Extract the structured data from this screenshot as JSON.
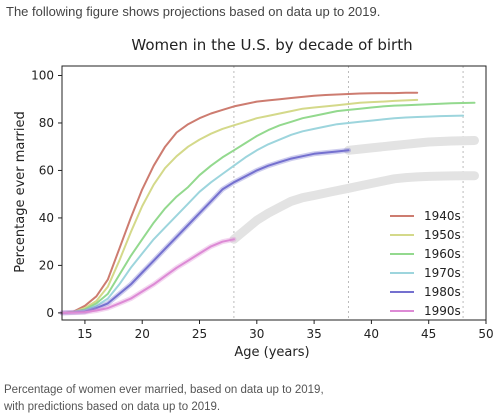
{
  "intro_text": "The following figure shows projections based on data up to 2019.",
  "caption": {
    "line1": "Percentage of women ever married, based on data up to 2019,",
    "line2": "with predictions based on data up to 2019."
  },
  "chart_data": {
    "type": "line",
    "title": "Women in the U.S. by decade of birth",
    "xlabel": "Age (years)",
    "ylabel": "Percentage ever married",
    "xlim": [
      13,
      50
    ],
    "ylim": [
      -3,
      104
    ],
    "xticks": [
      15,
      20,
      25,
      30,
      35,
      40,
      45,
      50
    ],
    "yticks": [
      0,
      20,
      40,
      60,
      80,
      100
    ],
    "grid": false,
    "legend_position": "right",
    "reference_lines_x": [
      28,
      38,
      48
    ],
    "prediction_color": "#e3e3e3",
    "series": [
      {
        "name": "1940s",
        "color": "#cd7c70",
        "observed": [
          [
            13,
            0
          ],
          [
            14,
            0.5
          ],
          [
            15,
            3
          ],
          [
            16,
            7
          ],
          [
            17,
            14
          ],
          [
            18,
            27
          ],
          [
            19,
            40
          ],
          [
            20,
            52
          ],
          [
            21,
            62
          ],
          [
            22,
            70
          ],
          [
            23,
            76
          ],
          [
            24,
            79.5
          ],
          [
            25,
            82
          ],
          [
            26,
            84
          ],
          [
            27,
            85.5
          ],
          [
            28,
            87
          ],
          [
            29,
            88
          ],
          [
            30,
            89
          ],
          [
            31,
            89.5
          ],
          [
            32,
            90
          ],
          [
            33,
            90.5
          ],
          [
            34,
            91
          ],
          [
            35,
            91.5
          ],
          [
            36,
            91.8
          ],
          [
            37,
            92
          ],
          [
            38,
            92.2
          ],
          [
            39,
            92.4
          ],
          [
            40,
            92.5
          ],
          [
            41,
            92.6
          ],
          [
            42,
            92.6
          ],
          [
            43,
            92.7
          ],
          [
            44,
            92.7
          ]
        ]
      },
      {
        "name": "1950s",
        "color": "#d4d98a",
        "observed": [
          [
            13,
            0
          ],
          [
            14,
            0.4
          ],
          [
            15,
            2
          ],
          [
            16,
            5
          ],
          [
            17,
            11
          ],
          [
            18,
            22
          ],
          [
            19,
            34
          ],
          [
            20,
            45
          ],
          [
            21,
            54
          ],
          [
            22,
            61
          ],
          [
            23,
            66
          ],
          [
            24,
            70
          ],
          [
            25,
            73
          ],
          [
            26,
            75.5
          ],
          [
            27,
            77.5
          ],
          [
            28,
            79
          ],
          [
            29,
            80.5
          ],
          [
            30,
            82
          ],
          [
            31,
            83
          ],
          [
            32,
            84
          ],
          [
            33,
            85
          ],
          [
            34,
            86
          ],
          [
            35,
            86.5
          ],
          [
            36,
            87
          ],
          [
            37,
            87.5
          ],
          [
            38,
            88
          ],
          [
            39,
            88.5
          ],
          [
            40,
            88.8
          ],
          [
            41,
            89
          ],
          [
            42,
            89.3
          ],
          [
            43,
            89.5
          ],
          [
            44,
            89.7
          ]
        ]
      },
      {
        "name": "1960s",
        "color": "#93d98e",
        "observed": [
          [
            13,
            0
          ],
          [
            14,
            0.3
          ],
          [
            15,
            1.5
          ],
          [
            16,
            4
          ],
          [
            17,
            8
          ],
          [
            18,
            16
          ],
          [
            19,
            24
          ],
          [
            20,
            31
          ],
          [
            21,
            38
          ],
          [
            22,
            44
          ],
          [
            23,
            49
          ],
          [
            24,
            53
          ],
          [
            25,
            58
          ],
          [
            26,
            62
          ],
          [
            27,
            65.5
          ],
          [
            28,
            68.5
          ],
          [
            29,
            71.5
          ],
          [
            30,
            74.5
          ],
          [
            31,
            77
          ],
          [
            32,
            79
          ],
          [
            33,
            80.5
          ],
          [
            34,
            82
          ],
          [
            35,
            83
          ],
          [
            36,
            84
          ],
          [
            37,
            85
          ],
          [
            38,
            85.5
          ],
          [
            39,
            86
          ],
          [
            40,
            86.5
          ],
          [
            41,
            87
          ],
          [
            42,
            87.3
          ],
          [
            43,
            87.5
          ],
          [
            44,
            87.7
          ],
          [
            45,
            87.9
          ],
          [
            46,
            88.1
          ],
          [
            47,
            88.3
          ],
          [
            48,
            88.4
          ],
          [
            49,
            88.5
          ]
        ]
      },
      {
        "name": "1970s",
        "color": "#9dd5dd",
        "observed": [
          [
            13,
            0
          ],
          [
            14,
            0.2
          ],
          [
            15,
            1
          ],
          [
            16,
            3
          ],
          [
            17,
            6
          ],
          [
            18,
            12
          ],
          [
            19,
            19
          ],
          [
            20,
            25
          ],
          [
            21,
            31
          ],
          [
            22,
            36
          ],
          [
            23,
            41
          ],
          [
            24,
            46
          ],
          [
            25,
            51
          ],
          [
            26,
            55
          ],
          [
            27,
            58.5
          ],
          [
            28,
            62
          ],
          [
            29,
            65.5
          ],
          [
            30,
            68.5
          ],
          [
            31,
            71
          ],
          [
            32,
            73
          ],
          [
            33,
            75
          ],
          [
            34,
            76.5
          ],
          [
            35,
            77.5
          ],
          [
            36,
            78.5
          ],
          [
            37,
            79.5
          ],
          [
            38,
            80
          ],
          [
            39,
            80.5
          ],
          [
            40,
            81
          ],
          [
            41,
            81.5
          ],
          [
            42,
            82
          ],
          [
            43,
            82.3
          ],
          [
            44,
            82.5
          ],
          [
            45,
            82.7
          ],
          [
            46,
            82.9
          ],
          [
            47,
            83
          ],
          [
            48,
            83.1
          ]
        ]
      },
      {
        "name": "1980s",
        "color": "#7470cf",
        "observed": [
          [
            13,
            0
          ],
          [
            14,
            0.2
          ],
          [
            15,
            0.5
          ],
          [
            16,
            2
          ],
          [
            17,
            4
          ],
          [
            18,
            8
          ],
          [
            19,
            12
          ],
          [
            20,
            17
          ],
          [
            21,
            22
          ],
          [
            22,
            27
          ],
          [
            23,
            32
          ],
          [
            24,
            37
          ],
          [
            25,
            42
          ],
          [
            26,
            47
          ],
          [
            27,
            52
          ],
          [
            28,
            55
          ],
          [
            29,
            57.5
          ],
          [
            30,
            60
          ],
          [
            31,
            62
          ],
          [
            32,
            63.5
          ],
          [
            33,
            65
          ],
          [
            34,
            66
          ],
          [
            35,
            67
          ],
          [
            36,
            67.5
          ],
          [
            37,
            68
          ],
          [
            38,
            68.5
          ]
        ],
        "predicted": [
          [
            38,
            68.5
          ],
          [
            39,
            69
          ],
          [
            40,
            69.5
          ],
          [
            41,
            70
          ],
          [
            42,
            70.5
          ],
          [
            43,
            71
          ],
          [
            44,
            71.5
          ],
          [
            45,
            72
          ],
          [
            46,
            72.2
          ],
          [
            47,
            72.4
          ],
          [
            48,
            72.5
          ],
          [
            49,
            72.6
          ]
        ]
      },
      {
        "name": "1990s",
        "color": "#dd8ad5",
        "observed": [
          [
            13,
            0
          ],
          [
            14,
            0.1
          ],
          [
            15,
            0.3
          ],
          [
            16,
            1
          ],
          [
            17,
            2
          ],
          [
            18,
            4
          ],
          [
            19,
            6
          ],
          [
            20,
            9
          ],
          [
            21,
            12
          ],
          [
            22,
            15.5
          ],
          [
            23,
            19
          ],
          [
            24,
            22
          ],
          [
            25,
            25
          ],
          [
            26,
            28
          ],
          [
            27,
            30
          ],
          [
            28,
            31
          ]
        ],
        "predicted": [
          [
            28,
            31
          ],
          [
            29,
            35
          ],
          [
            30,
            39
          ],
          [
            31,
            42
          ],
          [
            32,
            44.5
          ],
          [
            33,
            47
          ],
          [
            34,
            48.5
          ],
          [
            35,
            49.5
          ],
          [
            36,
            50.5
          ],
          [
            37,
            51.5
          ],
          [
            38,
            52.5
          ],
          [
            39,
            53.5
          ],
          [
            40,
            54.5
          ],
          [
            41,
            55.5
          ],
          [
            42,
            56.5
          ],
          [
            43,
            57
          ],
          [
            44,
            57.3
          ],
          [
            45,
            57.5
          ],
          [
            46,
            57.6
          ],
          [
            47,
            57.7
          ],
          [
            48,
            57.8
          ],
          [
            49,
            57.8
          ]
        ]
      }
    ]
  }
}
